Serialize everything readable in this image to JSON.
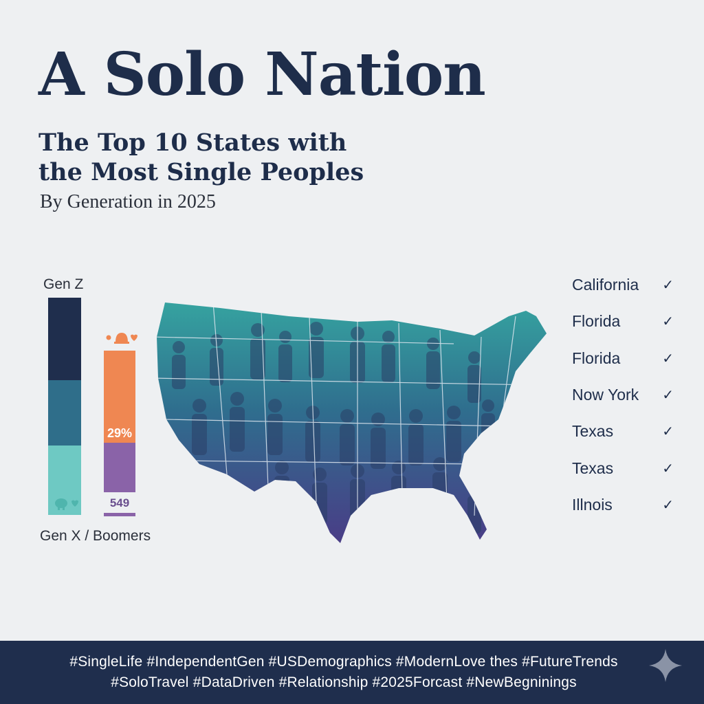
{
  "header": {
    "title": "A Solo Nation",
    "subtitle": "The Top 10 States with the Most Single Peoples",
    "byline": "By Generation in 2025"
  },
  "bars": {
    "top_label": "Gen Z",
    "bottom_label": "Gen X / Boomers",
    "left_bar": {
      "colors": [
        "#1f2e4d",
        "#2f6e8a",
        "#6ec9c3"
      ]
    },
    "right_bar": {
      "value_label": "29%",
      "base_label": "549",
      "colors": [
        "#ef8752",
        "#8a63a8"
      ]
    }
  },
  "states": [
    {
      "name": "California",
      "icon": "check-icon"
    },
    {
      "name": "Florida",
      "icon": "check-icon"
    },
    {
      "name": "Florida",
      "icon": "check-icon"
    },
    {
      "name": "Now York",
      "icon": "check-icon"
    },
    {
      "name": "Texas",
      "icon": "check-icon"
    },
    {
      "name": "Texas",
      "icon": "check-icon"
    },
    {
      "name": "Illnois",
      "icon": "check-icon"
    }
  ],
  "footer": {
    "hashtags_line1": "#SingleLife #IndependentGen #USDemographics #ModernLove thes #FutureTrends",
    "hashtags_line2": "#SoloTravel #DataDriven #Relationship #2025Forcast #NewBegninings",
    "icon": "sparkle-icon"
  },
  "colors": {
    "navy": "#1f2e4d",
    "teal": "#2f8f9a",
    "purple": "#4b3f8a",
    "orange": "#ef8752"
  }
}
